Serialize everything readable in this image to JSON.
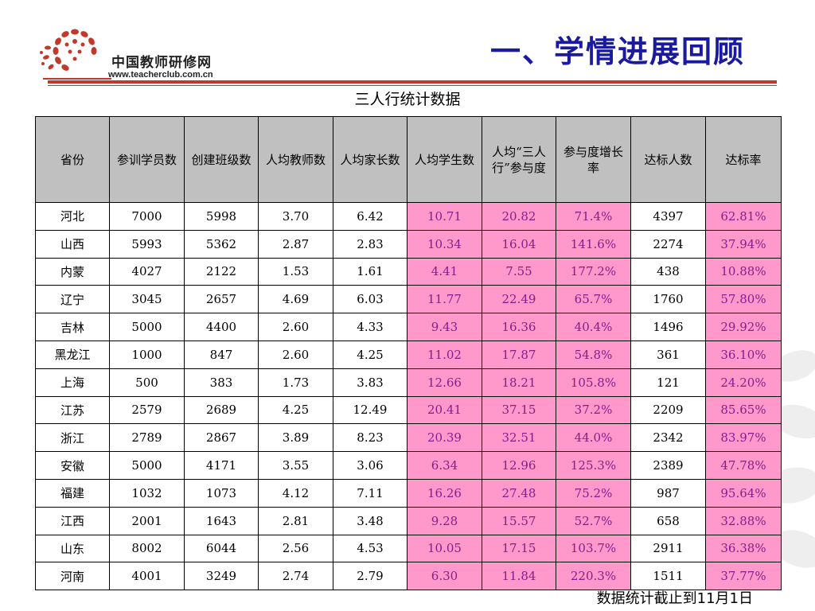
{
  "header": {
    "logo_name": "中国教师研修网",
    "logo_url": "www.teacherclub.com.cn",
    "title": "一、学情进展回顾",
    "brand_color": "#c0392b",
    "title_color": "#1a1aa0"
  },
  "table": {
    "caption": "三人行统计数据",
    "highlight_color": "#ff99cc",
    "columns": [
      "省份",
      "参训学员数",
      "创建班级数",
      "人均教师数",
      "人均家长数",
      "人均学生数",
      "人均“三人行”参与度",
      "参与度增长率",
      "达标人数",
      "达标率"
    ],
    "rows": [
      [
        "河北",
        "7000",
        "5998",
        "3.70",
        "6.42",
        "10.71",
        "20.82",
        "71.4%",
        "4397",
        "62.81%"
      ],
      [
        "山西",
        "5993",
        "5362",
        "2.87",
        "2.83",
        "10.34",
        "16.04",
        "141.6%",
        "2274",
        "37.94%"
      ],
      [
        "内蒙",
        "4027",
        "2122",
        "1.53",
        "1.61",
        "4.41",
        "7.55",
        "177.2%",
        "438",
        "10.88%"
      ],
      [
        "辽宁",
        "3045",
        "2657",
        "4.69",
        "6.03",
        "11.77",
        "22.49",
        "65.7%",
        "1760",
        "57.80%"
      ],
      [
        "吉林",
        "5000",
        "4400",
        "2.60",
        "4.33",
        "9.43",
        "16.36",
        "40.4%",
        "1496",
        "29.92%"
      ],
      [
        "黑龙江",
        "1000",
        "847",
        "2.60",
        "4.25",
        "11.02",
        "17.87",
        "54.8%",
        "361",
        "36.10%"
      ],
      [
        "上海",
        "500",
        "383",
        "1.73",
        "3.83",
        "12.66",
        "18.21",
        "105.8%",
        "121",
        "24.20%"
      ],
      [
        "江苏",
        "2579",
        "2689",
        "4.25",
        "12.49",
        "20.41",
        "37.15",
        "37.2%",
        "2209",
        "85.65%"
      ],
      [
        "浙江",
        "2789",
        "2867",
        "3.89",
        "8.23",
        "20.39",
        "32.51",
        "44.0%",
        "2342",
        "83.97%"
      ],
      [
        "安徽",
        "5000",
        "4171",
        "3.55",
        "3.06",
        "6.34",
        "12.96",
        "125.3%",
        "2389",
        "47.78%"
      ],
      [
        "福建",
        "1032",
        "1073",
        "4.12",
        "7.11",
        "16.26",
        "27.48",
        "75.2%",
        "987",
        "95.64%"
      ],
      [
        "江西",
        "2001",
        "1643",
        "2.81",
        "3.48",
        "9.28",
        "15.57",
        "52.7%",
        "658",
        "32.88%"
      ],
      [
        "山东",
        "8002",
        "6044",
        "2.56",
        "4.53",
        "10.05",
        "17.15",
        "103.7%",
        "2911",
        "36.38%"
      ],
      [
        "河南",
        "4001",
        "3249",
        "2.74",
        "2.79",
        "6.30",
        "11.84",
        "220.3%",
        "1511",
        "37.77%"
      ]
    ]
  },
  "footer": {
    "note": "数据统计截止到11月1日"
  }
}
